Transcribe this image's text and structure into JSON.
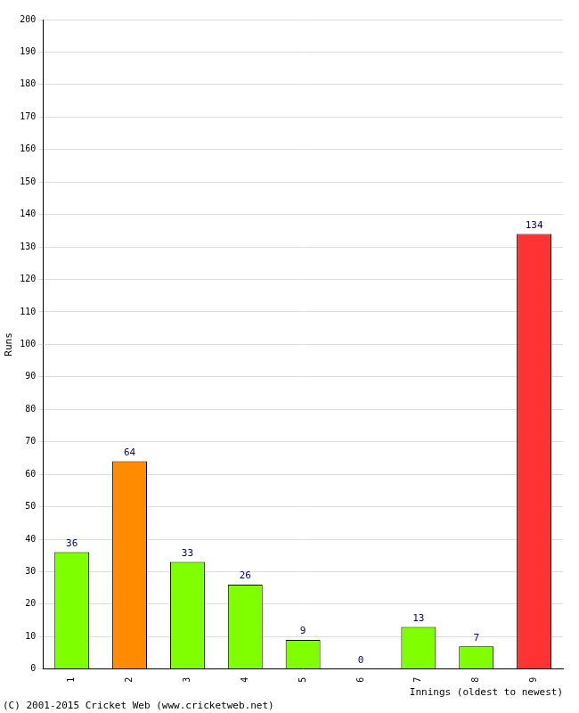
{
  "chart_data": {
    "type": "bar",
    "x_label": "Innings (oldest to newest)",
    "y_label": "Runs",
    "annotations": [
      "(C) 2001-2015 Cricket Web (www.cricketweb.net)"
    ],
    "categories": [
      "1",
      "2",
      "3",
      "4",
      "5",
      "6",
      "7",
      "8",
      "9"
    ],
    "values": [
      36,
      64,
      33,
      26,
      9,
      0,
      13,
      7,
      134
    ],
    "colors": [
      "#80ff00",
      "#ff8c00",
      "#80ff00",
      "#80ff00",
      "#80ff00",
      "#80ff00",
      "#80ff00",
      "#80ff00",
      "#ff3333"
    ],
    "ylim": [
      0,
      200
    ],
    "yticks": [
      0,
      10,
      20,
      30,
      40,
      50,
      60,
      70,
      80,
      90,
      100,
      110,
      120,
      130,
      140,
      150,
      160,
      170,
      180,
      190,
      200
    ],
    "grid": true,
    "data_labels": true
  }
}
